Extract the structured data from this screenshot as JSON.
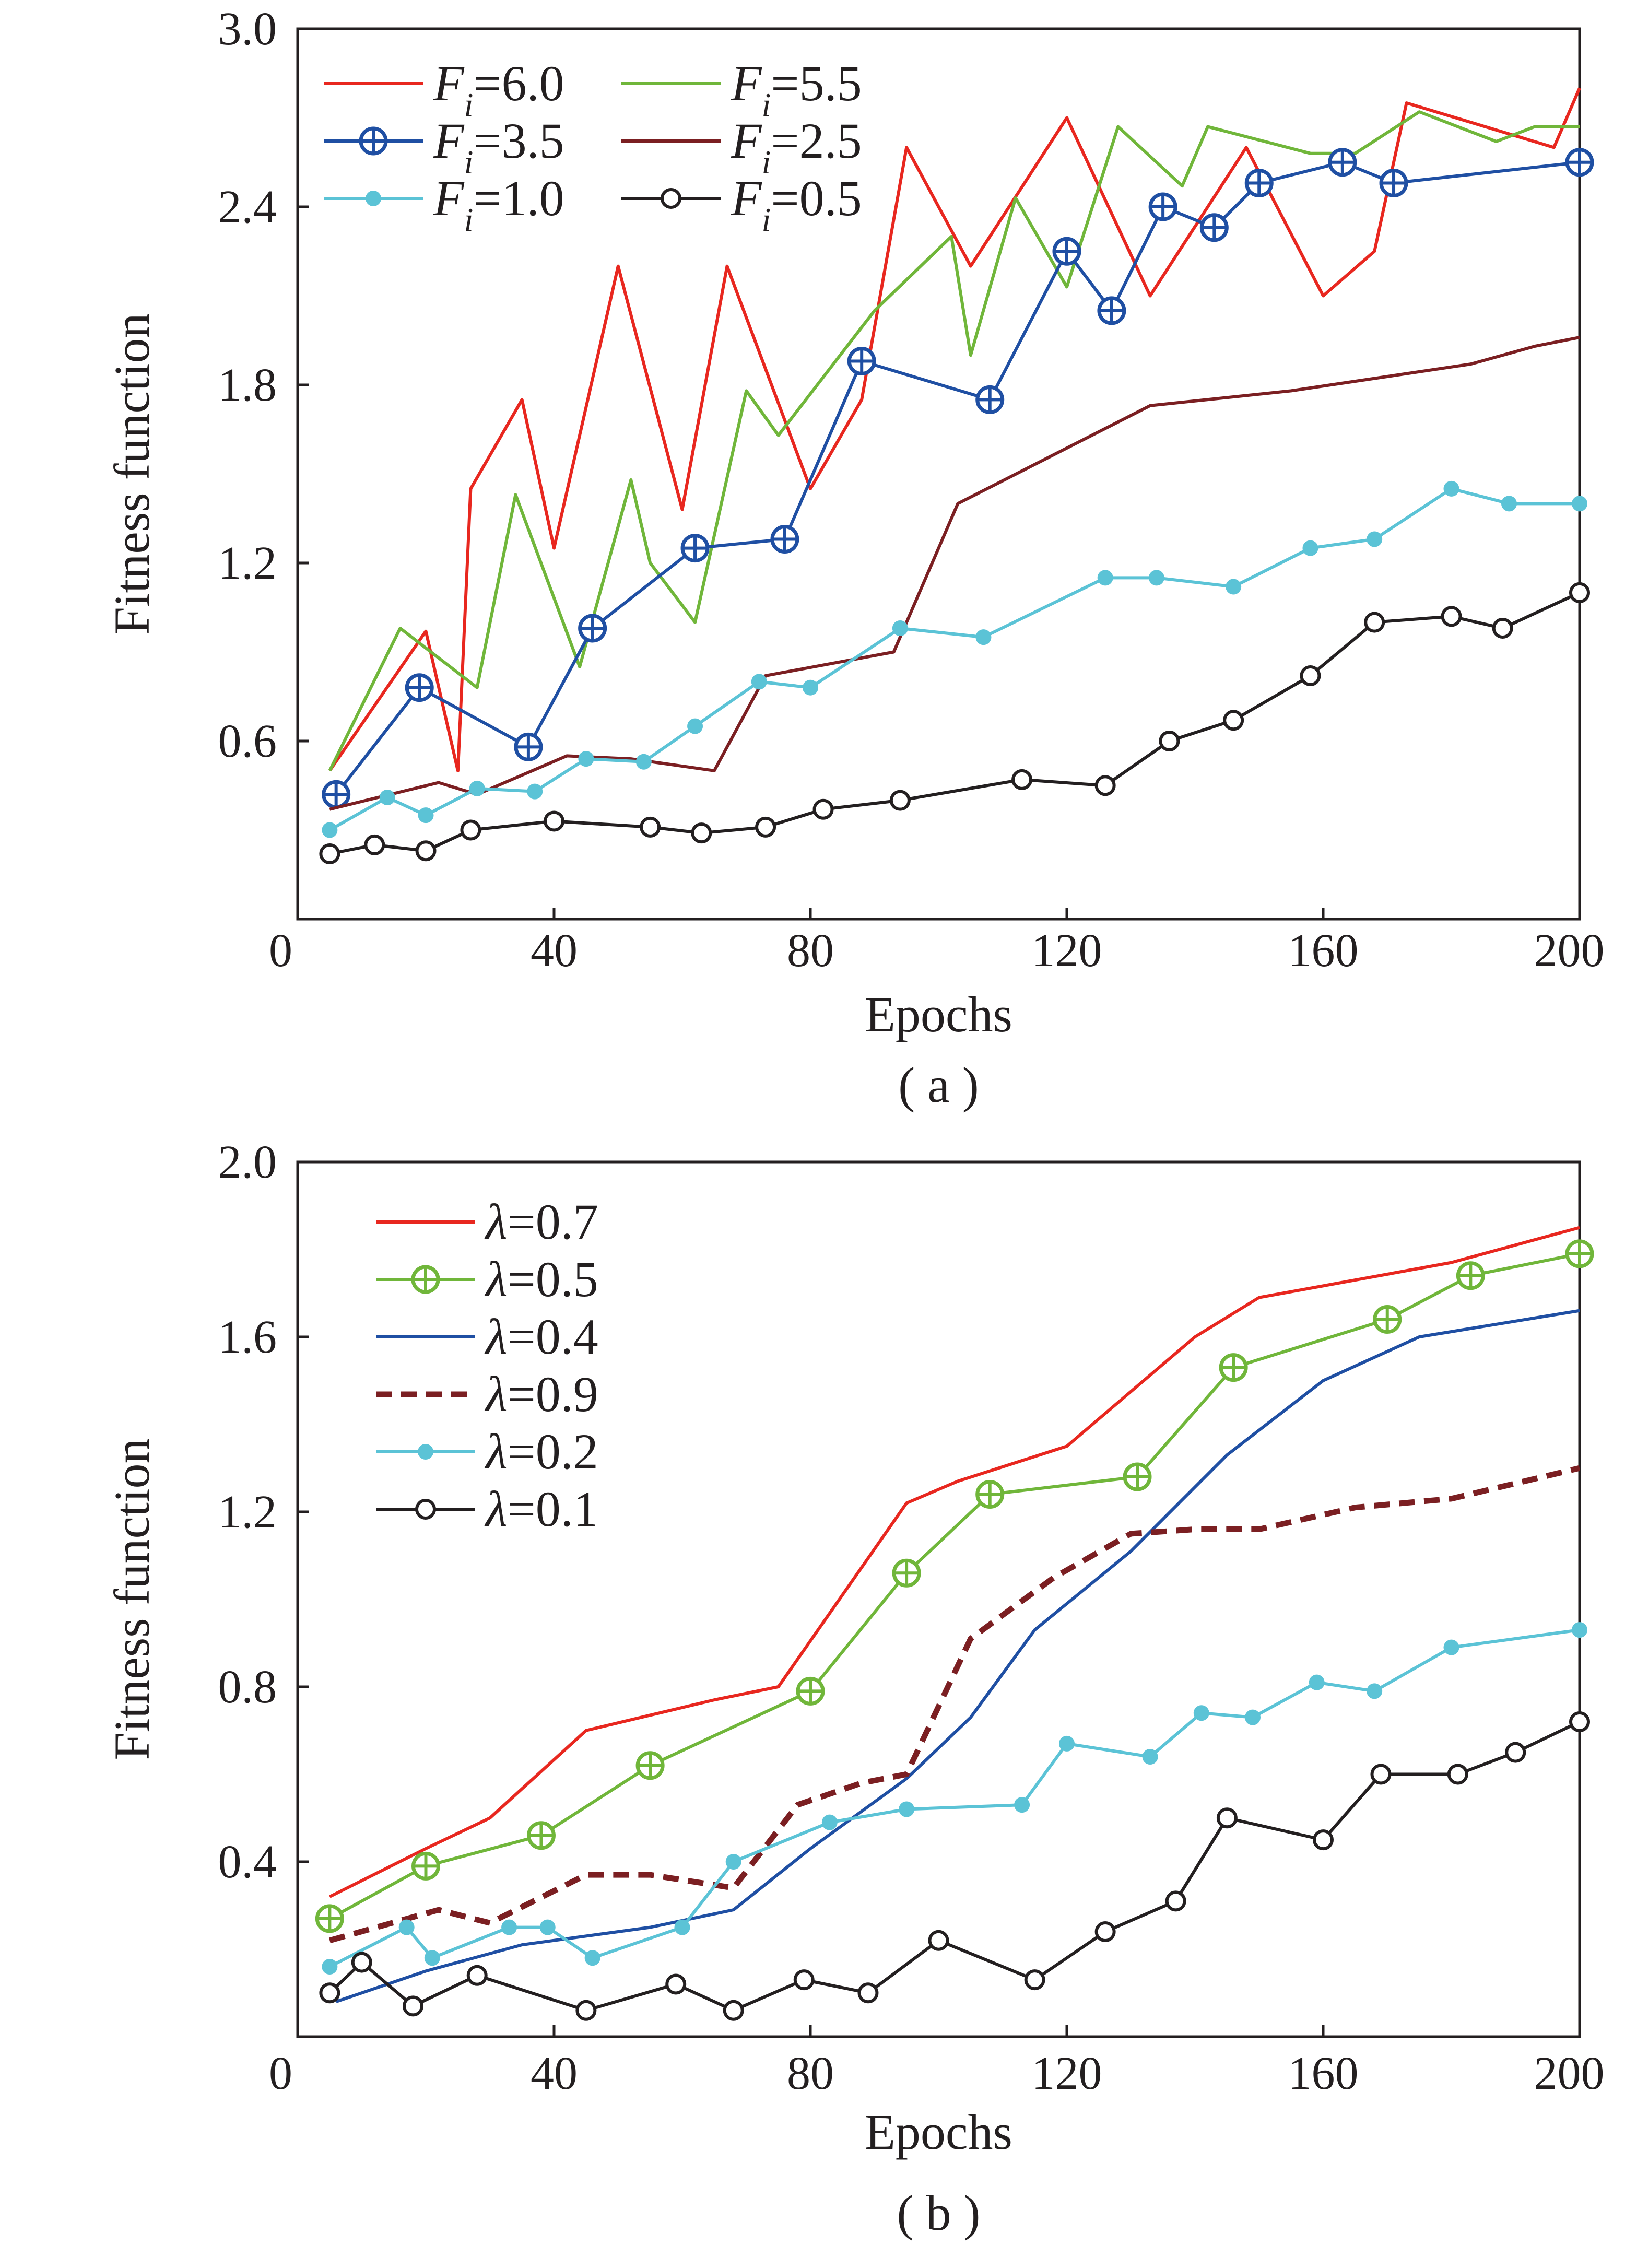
{
  "chart_data": [
    {
      "type": "line",
      "panel_label": "( a )",
      "xlabel": "Epochs",
      "ylabel": "Fitness function",
      "xlim": [
        0,
        200
      ],
      "ylim": [
        0,
        3.0
      ],
      "x_ticks": [
        "0",
        "40",
        "80",
        "120",
        "160",
        "200"
      ],
      "y_ticks": [
        "0.6",
        "1.2",
        "1.8",
        "2.4",
        "3.0"
      ],
      "legend_position": "top-left",
      "series": [
        {
          "name": "F",
          "sub": "i",
          "val": "=6.0",
          "color": "#e8271f",
          "marker": "none",
          "x": [
            5,
            20,
            25,
            27,
            35,
            40,
            50,
            60,
            67,
            80,
            88,
            95,
            105,
            120,
            133,
            148,
            160,
            168,
            173,
            196,
            200
          ],
          "y": [
            0.5,
            0.97,
            0.5,
            1.45,
            1.75,
            1.25,
            2.2,
            1.38,
            2.2,
            1.45,
            1.75,
            2.6,
            2.2,
            2.7,
            2.1,
            2.6,
            2.1,
            2.25,
            2.75,
            2.6,
            2.8
          ]
        },
        {
          "name": "F",
          "sub": "i",
          "val": "=5.5",
          "color": "#70b63a",
          "marker": "none",
          "x": [
            5,
            16,
            28,
            34,
            44,
            52,
            55,
            62,
            70,
            75,
            90,
            102,
            105,
            112,
            120,
            128,
            138,
            142,
            158,
            165,
            175,
            187,
            193,
            200
          ],
          "y": [
            0.5,
            0.98,
            0.78,
            1.43,
            0.85,
            1.48,
            1.2,
            1.0,
            1.78,
            1.63,
            2.05,
            2.3,
            1.9,
            2.43,
            2.13,
            2.67,
            2.47,
            2.67,
            2.58,
            2.58,
            2.72,
            2.62,
            2.67,
            2.67
          ]
        },
        {
          "name": "F",
          "sub": "i",
          "val": "=3.5",
          "color": "#1f4fa3",
          "marker": "cross-circle",
          "x": [
            6,
            19,
            36,
            46,
            62,
            76,
            88,
            108,
            120,
            127,
            135,
            143,
            150,
            163,
            171,
            200
          ],
          "y": [
            0.42,
            0.78,
            0.58,
            0.98,
            1.25,
            1.28,
            1.88,
            1.75,
            2.25,
            2.05,
            2.4,
            2.33,
            2.48,
            2.55,
            2.48,
            2.55
          ]
        },
        {
          "name": "F",
          "sub": "i",
          "val": "=2.5",
          "color": "#7b1f22",
          "marker": "none",
          "x": [
            5,
            22,
            28,
            42,
            52,
            65,
            73,
            93,
            103,
            133,
            155,
            183,
            193,
            200
          ],
          "y": [
            0.37,
            0.46,
            0.42,
            0.55,
            0.54,
            0.5,
            0.82,
            0.9,
            1.4,
            1.73,
            1.78,
            1.87,
            1.93,
            1.96
          ]
        },
        {
          "name": "F",
          "sub": "i",
          "val": "=1.0",
          "color": "#5bc3d6",
          "marker": "dot",
          "x": [
            5,
            14,
            20,
            28,
            37,
            45,
            54,
            62,
            72,
            80,
            94,
            107,
            126,
            134,
            146,
            158,
            168,
            180,
            189,
            200
          ],
          "y": [
            0.3,
            0.41,
            0.35,
            0.44,
            0.43,
            0.54,
            0.53,
            0.65,
            0.8,
            0.78,
            0.98,
            0.95,
            1.15,
            1.15,
            1.12,
            1.25,
            1.28,
            1.45,
            1.4,
            1.4
          ]
        },
        {
          "name": "F",
          "sub": "i",
          "val": "=0.5",
          "color": "#231f20",
          "marker": "open-circle",
          "x": [
            5,
            12,
            20,
            27,
            40,
            55,
            63,
            73,
            82,
            94,
            113,
            126,
            136,
            146,
            158,
            168,
            180,
            188,
            200
          ],
          "y": [
            0.22,
            0.25,
            0.23,
            0.3,
            0.33,
            0.31,
            0.29,
            0.31,
            0.37,
            0.4,
            0.47,
            0.45,
            0.6,
            0.67,
            0.82,
            1.0,
            1.02,
            0.98,
            1.1
          ]
        }
      ]
    },
    {
      "type": "line",
      "panel_label": "( b )",
      "xlabel": "Epochs",
      "ylabel": "Fitness function",
      "xlim": [
        0,
        200
      ],
      "ylim": [
        0,
        2.0
      ],
      "x_ticks": [
        "0",
        "40",
        "80",
        "120",
        "160",
        "200"
      ],
      "y_ticks": [
        "0.4",
        "0.8",
        "1.2",
        "1.6",
        "2.0"
      ],
      "legend_position": "top-left",
      "series": [
        {
          "name": "λ",
          "sub": "",
          "val": "=0.7",
          "color": "#e8271f",
          "marker": "none",
          "dash": "",
          "x": [
            5,
            20,
            30,
            45,
            65,
            75,
            95,
            103,
            120,
            140,
            150,
            180,
            200
          ],
          "y": [
            0.32,
            0.43,
            0.5,
            0.7,
            0.77,
            0.8,
            1.22,
            1.27,
            1.35,
            1.6,
            1.69,
            1.77,
            1.85
          ]
        },
        {
          "name": "λ",
          "sub": "",
          "val": "=0.5",
          "color": "#70b63a",
          "marker": "cross-circle",
          "dash": "",
          "x": [
            5,
            20,
            38,
            55,
            80,
            95,
            108,
            131,
            146,
            170,
            183,
            200
          ],
          "y": [
            0.27,
            0.39,
            0.46,
            0.62,
            0.79,
            1.06,
            1.24,
            1.28,
            1.53,
            1.64,
            1.74,
            1.79
          ]
        },
        {
          "name": "λ",
          "sub": "",
          "val": "=0.4",
          "color": "#1f4fa3",
          "marker": "none",
          "dash": "",
          "x": [
            6,
            20,
            35,
            55,
            68,
            80,
            95,
            105,
            115,
            130,
            145,
            160,
            175,
            200
          ],
          "y": [
            0.08,
            0.15,
            0.21,
            0.25,
            0.29,
            0.43,
            0.59,
            0.73,
            0.93,
            1.11,
            1.33,
            1.5,
            1.6,
            1.66
          ]
        },
        {
          "name": "λ",
          "sub": "",
          "val": "=0.9",
          "color": "#7b1f22",
          "marker": "none",
          "dash": "30,18",
          "x": [
            5,
            22,
            30,
            45,
            55,
            68,
            78,
            88,
            95,
            105,
            118,
            130,
            140,
            150,
            165,
            180,
            200
          ],
          "y": [
            0.22,
            0.29,
            0.26,
            0.37,
            0.37,
            0.34,
            0.53,
            0.58,
            0.6,
            0.91,
            1.05,
            1.15,
            1.16,
            1.16,
            1.21,
            1.23,
            1.3
          ]
        },
        {
          "name": "λ",
          "sub": "",
          "val": "=0.2",
          "color": "#5bc3d6",
          "marker": "dot",
          "x": [
            5,
            17,
            21,
            33,
            39,
            46,
            60,
            68,
            83,
            95,
            113,
            120,
            133,
            141,
            149,
            159,
            168,
            180,
            200
          ],
          "y": [
            0.16,
            0.25,
            0.18,
            0.25,
            0.25,
            0.18,
            0.25,
            0.4,
            0.49,
            0.52,
            0.53,
            0.67,
            0.64,
            0.74,
            0.73,
            0.81,
            0.79,
            0.89,
            0.93
          ]
        },
        {
          "name": "λ",
          "sub": "",
          "val": "=0.1",
          "color": "#231f20",
          "marker": "open-circle",
          "x": [
            5,
            10,
            18,
            28,
            45,
            59,
            68,
            79,
            89,
            100,
            115,
            126,
            137,
            145,
            160,
            169,
            181,
            190,
            200
          ],
          "y": [
            0.1,
            0.17,
            0.07,
            0.14,
            0.06,
            0.12,
            0.06,
            0.13,
            0.1,
            0.22,
            0.13,
            0.24,
            0.31,
            0.5,
            0.45,
            0.6,
            0.6,
            0.65,
            0.72
          ]
        }
      ]
    }
  ]
}
